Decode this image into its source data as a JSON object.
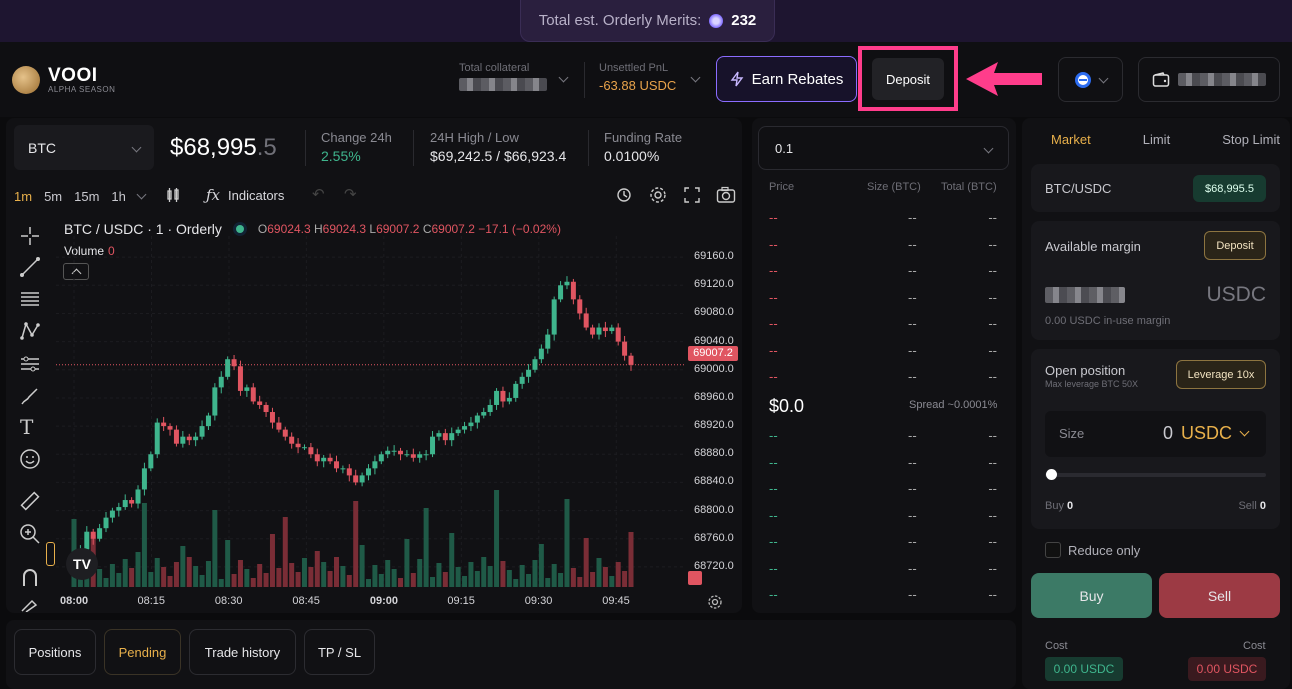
{
  "banner": {
    "label": "Total est. Orderly Merits:",
    "value": "232"
  },
  "logo": {
    "name": "VOOI",
    "subtitle": "ALPHA SEASON"
  },
  "header": {
    "total_collateral_label": "Total collateral",
    "unsettled_pnl_label": "Unsettled PnL",
    "unsettled_pnl_value": "-63.88 USDC",
    "earn_rebates_label": "Earn Rebates",
    "deposit_label": "Deposit"
  },
  "market": {
    "symbol": "BTC",
    "price_main": "$68,995",
    "price_decimal": ".5",
    "change_label": "Change 24h",
    "change_value": "2.55%",
    "highlow_label": "24H High / Low",
    "highlow_value": "$69,242.5 / $66,923.4",
    "funding_label": "Funding Rate",
    "funding_value": "0.0100%"
  },
  "toolbar": {
    "intervals": [
      "1m",
      "5m",
      "15m",
      "1h"
    ],
    "active_interval": "1m",
    "indicators_label": "Indicators"
  },
  "chart_legend": {
    "title": "BTC / USDC · 1 · Orderly",
    "o_label": "O",
    "o_value": "69024.3",
    "h_label": "H",
    "h_value": "69024.3",
    "l_label": "L",
    "l_value": "69007.2",
    "c_label": "C",
    "c_value": "69007.2",
    "change": "−17.1 (−0.02%)",
    "volume_label": "Volume",
    "volume_value": "0"
  },
  "chart_data": {
    "type": "candlestick",
    "x_ticks": [
      "08:00",
      "08:15",
      "08:30",
      "08:45",
      "09:00",
      "09:15",
      "09:30",
      "09:45"
    ],
    "y_ticks": [
      "69160.0",
      "69120.0",
      "69080.0",
      "69040.0",
      "69000.0",
      "68960.0",
      "68920.0",
      "68880.0",
      "68840.0",
      "68800.0",
      "68760.0",
      "68720.0"
    ],
    "ylim": [
      68700,
      69190
    ],
    "last_price": "69007.2",
    "closes": [
      68735,
      68745,
      68770,
      68760,
      68775,
      68790,
      68800,
      68805,
      68815,
      68810,
      68830,
      68860,
      68880,
      68925,
      68920,
      68915,
      68895,
      68905,
      68900,
      68905,
      68920,
      68935,
      68975,
      68990,
      69015,
      69005,
      68970,
      68975,
      68955,
      68950,
      68940,
      68925,
      68915,
      68905,
      68895,
      68890,
      68890,
      68880,
      68870,
      68875,
      68870,
      68860,
      68860,
      68850,
      68840,
      68850,
      68860,
      68870,
      68880,
      68885,
      68885,
      68880,
      68880,
      68875,
      68880,
      68880,
      68905,
      68910,
      68900,
      68910,
      68915,
      68920,
      68925,
      68935,
      68940,
      68950,
      68970,
      68955,
      68960,
      68980,
      68990,
      69000,
      69015,
      69030,
      69050,
      69100,
      69120,
      69125,
      69100,
      69080,
      69060,
      69050,
      69060,
      69055,
      69060,
      69040,
      69020,
      69007
    ],
    "volume_label": "Volume"
  },
  "orderbook": {
    "depth": "0.1",
    "col_price": "Price",
    "col_size": "Size (BTC)",
    "col_total": "Total (BTC)",
    "mid_price": "$0.0",
    "spread": "Spread ~0.0001%",
    "empty": "--"
  },
  "order_form": {
    "tabs": [
      "Market",
      "Limit",
      "Stop Limit"
    ],
    "active_tab": "Market",
    "pair": "BTC/USDC",
    "pair_price": "$68,995.5",
    "available_margin_label": "Available margin",
    "deposit_label": "Deposit",
    "margin_currency": "USDC",
    "in_use_margin": "0.00 USDC in-use margin",
    "open_position_label": "Open position",
    "max_leverage": "Max leverage BTC 50X",
    "leverage_label": "Leverage 10x",
    "size_label": "Size",
    "size_value": "0",
    "size_unit": "USDC",
    "buy_label": "Buy",
    "buy_value": "0",
    "sell_label": "Sell",
    "sell_value": "0",
    "reduce_only": "Reduce only",
    "buy_button": "Buy",
    "sell_button": "Sell",
    "cost_label": "Cost",
    "buy_cost": "0.00 USDC",
    "sell_cost": "0.00 USDC"
  },
  "bottom_tabs": [
    "Positions",
    "Pending",
    "Trade history",
    "TP / SL"
  ],
  "bottom_active": "Pending",
  "colors": {
    "up": "#3fb58d",
    "down": "#e05561",
    "accent": "#e8b04b",
    "annotation": "#ff3d8b"
  }
}
